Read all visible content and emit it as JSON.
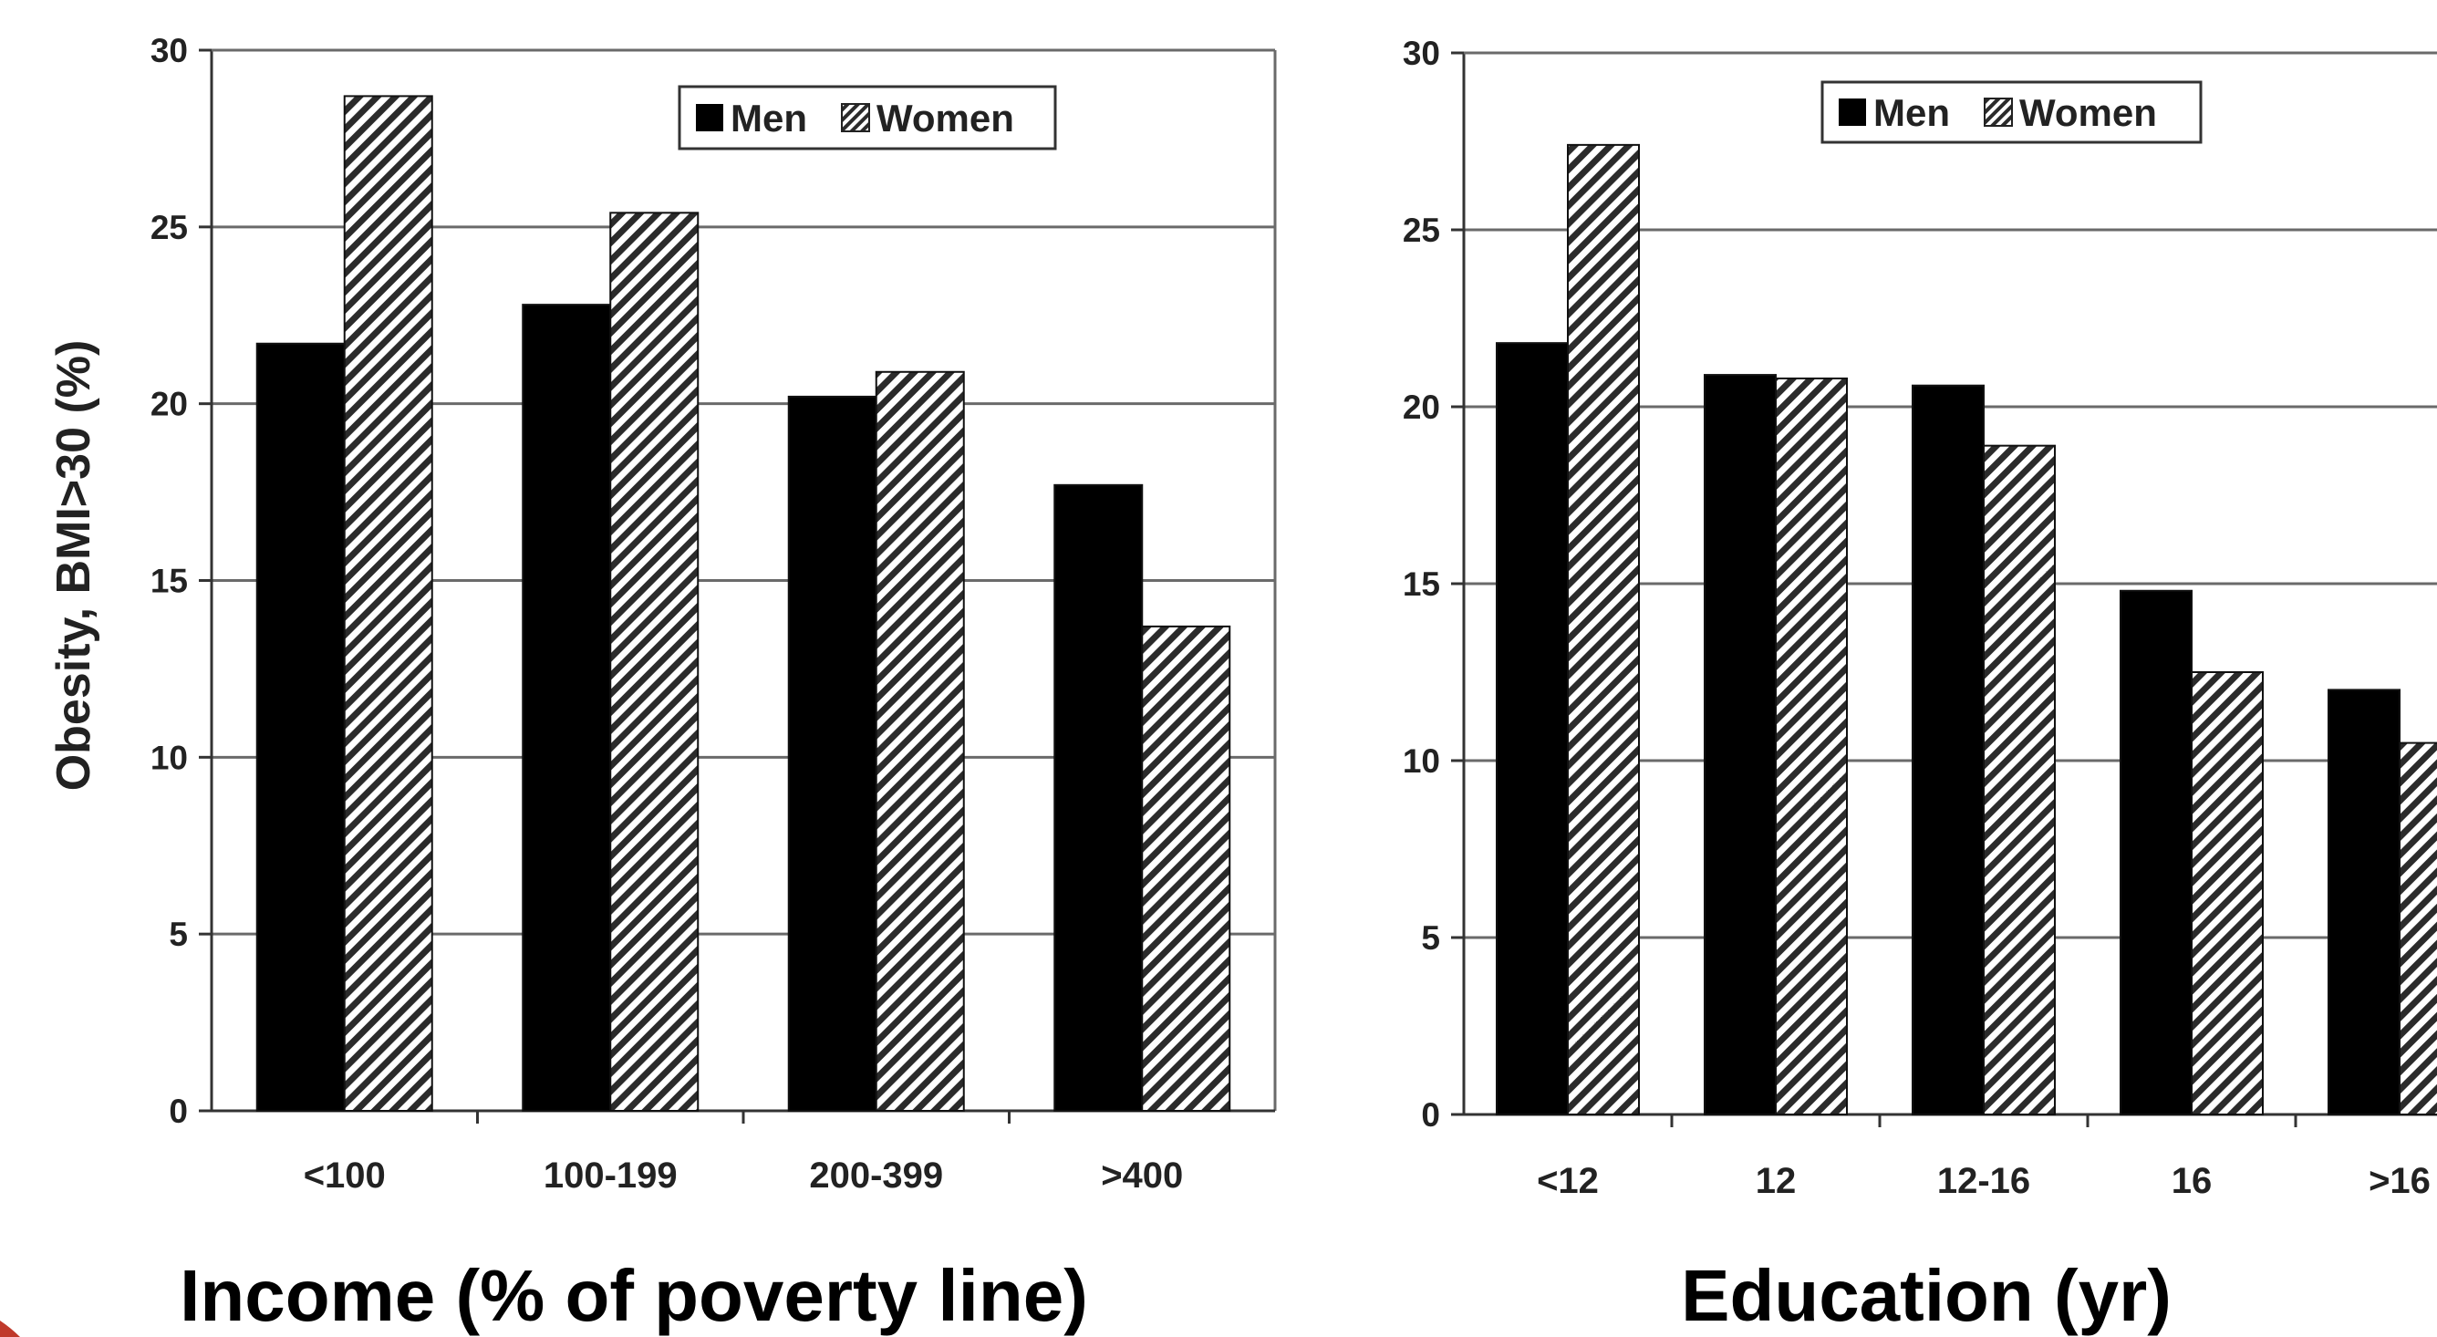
{
  "legend": {
    "men": "Men",
    "women": "Women"
  },
  "colors": {
    "men": "#000000",
    "women_hatch": "#333333",
    "grid": "#555555",
    "accent": "#c0392b"
  },
  "chart_data": [
    {
      "type": "bar",
      "title": "",
      "xlabel": "Income (% of poverty line)",
      "ylabel": "Obesity, BMI>30 (%)",
      "ylim": [
        0,
        30
      ],
      "yticks": [
        0,
        5,
        10,
        15,
        20,
        25,
        30
      ],
      "grid": true,
      "legend_position": "top-right",
      "categories": [
        "<100",
        "100-199",
        "200-399",
        ">400"
      ],
      "series": [
        {
          "name": "Men",
          "pattern": "solid",
          "values": [
            21.7,
            22.8,
            20.2,
            17.7
          ]
        },
        {
          "name": "Women",
          "pattern": "hatched",
          "values": [
            28.7,
            25.4,
            20.9,
            13.7
          ]
        }
      ]
    },
    {
      "type": "bar",
      "title": "",
      "xlabel": "Education (yr)",
      "ylabel": "",
      "ylim": [
        0,
        30
      ],
      "yticks": [
        0,
        5,
        10,
        15,
        20,
        25,
        30
      ],
      "grid": true,
      "legend_position": "top-right",
      "categories": [
        "<12",
        "12",
        "12-16",
        "16",
        ">16"
      ],
      "series": [
        {
          "name": "Men",
          "pattern": "solid",
          "values": [
            21.8,
            20.9,
            20.6,
            14.8,
            12.0
          ]
        },
        {
          "name": "Women",
          "pattern": "hatched",
          "values": [
            27.4,
            20.8,
            18.9,
            12.5,
            10.5
          ]
        }
      ]
    }
  ]
}
